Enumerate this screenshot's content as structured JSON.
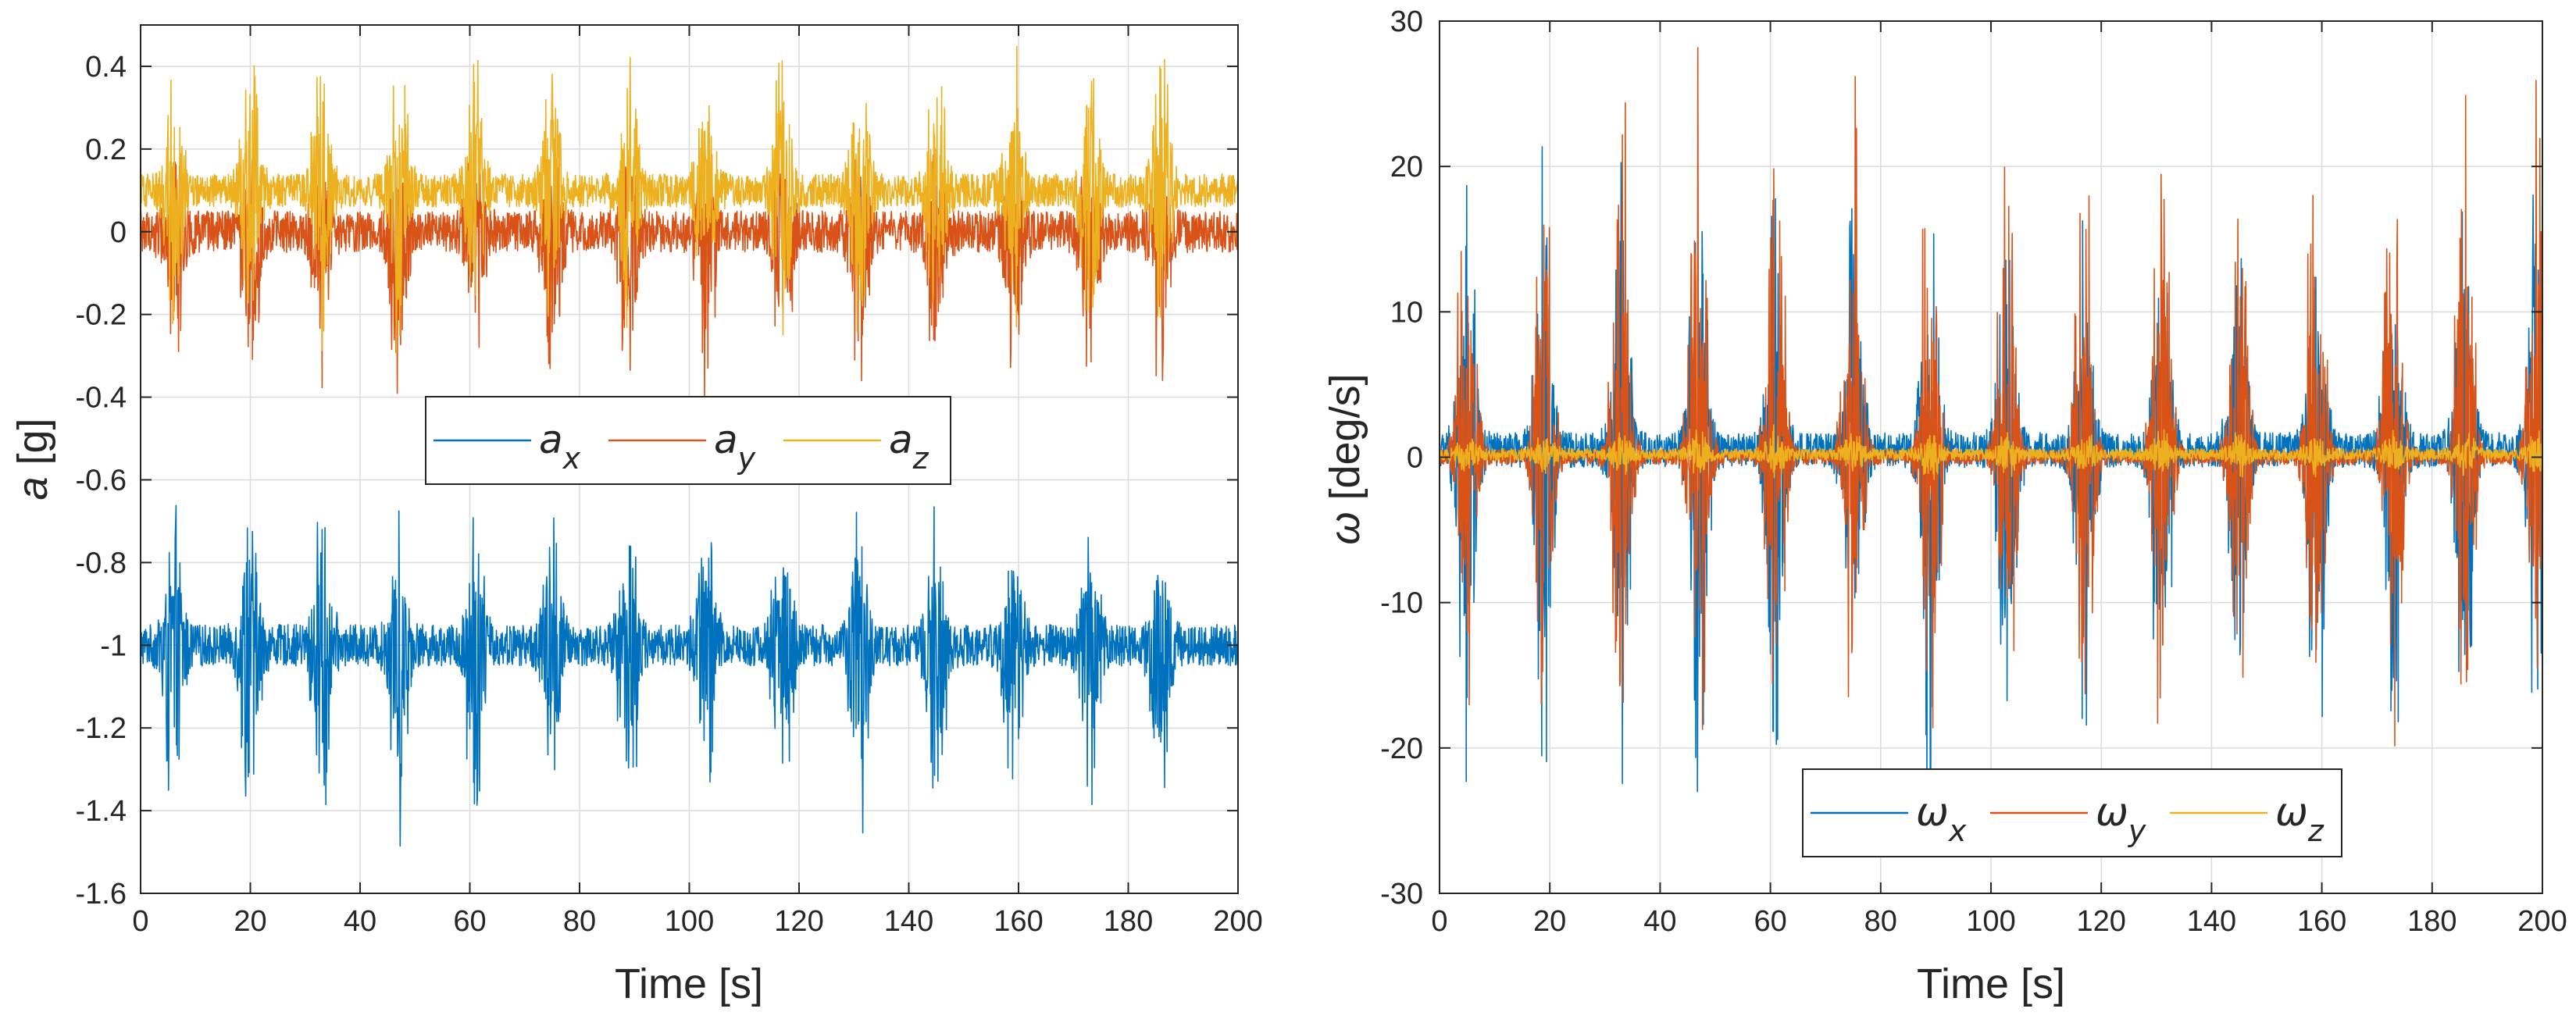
{
  "chart_data": [
    {
      "type": "line",
      "title": "",
      "xlabel": "Time [s]",
      "ylabel": "a [g]",
      "ylabel_var": "a",
      "ylabel_unit": " [g]",
      "xlim": [
        0,
        200
      ],
      "ylim": [
        -1.6,
        0.5
      ],
      "xticks": [
        0,
        20,
        40,
        60,
        80,
        100,
        120,
        140,
        160,
        180,
        200
      ],
      "yticks": [
        -1.6,
        -1.4,
        -1.2,
        -1,
        -0.8,
        -0.6,
        -0.4,
        -0.2,
        0,
        0.2,
        0.4
      ],
      "xtick_labels": [
        "0",
        "20",
        "40",
        "60",
        "80",
        "100",
        "120",
        "140",
        "160",
        "180",
        "200"
      ],
      "ytick_labels": [
        "-1.6",
        "-1.4",
        "-1.2",
        "-1",
        "-0.8",
        "-0.6",
        "-0.4",
        "-0.2",
        "0",
        "0.2",
        "0.4"
      ],
      "grid": true,
      "legend_placement": "center",
      "burst_times": [
        6,
        20,
        33,
        47,
        61,
        75,
        89,
        103,
        117,
        131,
        145,
        159,
        173,
        186
      ],
      "series": [
        {
          "name": "a",
          "sub": "x",
          "color": "#0072BD",
          "baseline": -1.0,
          "quiet_amplitude": 0.05,
          "burst_high": -0.65,
          "burst_low": -1.52
        },
        {
          "name": "a",
          "sub": "y",
          "color": "#D95319",
          "baseline": 0.0,
          "quiet_amplitude": 0.05,
          "burst_high": 0.2,
          "burst_low": -0.42
        },
        {
          "name": "a",
          "sub": "z",
          "color": "#EDB120",
          "baseline": 0.1,
          "quiet_amplitude": 0.04,
          "burst_high": 0.46,
          "burst_low": -0.3
        }
      ]
    },
    {
      "type": "line",
      "title": "",
      "xlabel": "Time [s]",
      "ylabel": "ω [deg/s]",
      "ylabel_var": "ω",
      "ylabel_unit": " [deg/s]",
      "xlim": [
        0,
        200
      ],
      "ylim": [
        -30,
        30
      ],
      "xticks": [
        0,
        20,
        40,
        60,
        80,
        100,
        120,
        140,
        160,
        180,
        200
      ],
      "yticks": [
        -30,
        -20,
        -10,
        0,
        10,
        20,
        30
      ],
      "xtick_labels": [
        "0",
        "20",
        "40",
        "60",
        "80",
        "100",
        "120",
        "140",
        "160",
        "180",
        "200"
      ],
      "ytick_labels": [
        "-30",
        "-20",
        "-10",
        "0",
        "10",
        "20",
        "30"
      ],
      "grid": true,
      "legend_placement": "bottom-center",
      "burst_times": [
        5,
        19,
        33,
        47,
        61,
        75,
        89,
        103,
        117,
        131,
        145,
        159,
        173,
        186,
        199
      ],
      "series": [
        {
          "name": "ω",
          "sub": "x",
          "color": "#0072BD",
          "baseline": 0.5,
          "quiet_amplitude": 1.2,
          "burst_high": 22,
          "burst_low": -28
        },
        {
          "name": "ω",
          "sub": "y",
          "color": "#D95319",
          "baseline": 0.0,
          "quiet_amplitude": 0.5,
          "burst_high": 30,
          "burst_low": -24.5
        },
        {
          "name": "ω",
          "sub": "z",
          "color": "#EDB120",
          "baseline": 0.2,
          "quiet_amplitude": 0.4,
          "burst_high": 2,
          "burst_low": -1.5
        }
      ]
    }
  ]
}
